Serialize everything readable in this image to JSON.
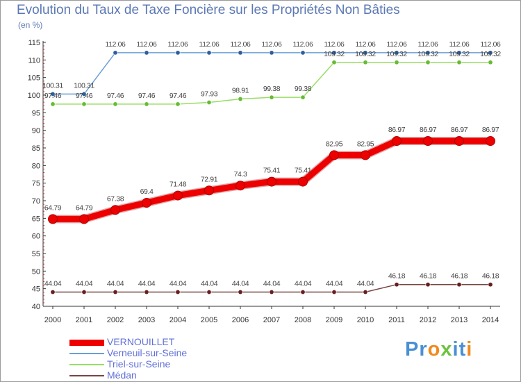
{
  "title": "Evolution du Taux de Taxe Foncière sur les Propriétés Non Bâties",
  "unit": "(en %)",
  "brand": {
    "letters": [
      "P",
      "r",
      "o",
      "x",
      "i",
      "t",
      "i"
    ],
    "colors": [
      "#4a8fd4",
      "#4a8fd4",
      "#f08a1c",
      "#6cc23f",
      "#4a8fd4",
      "#4a8fd4",
      "#f08a1c"
    ]
  },
  "chart_data": {
    "type": "line",
    "title": "Evolution du Taux de Taxe Foncière sur les Propriétés Non Bâties",
    "ylabel": "(en %)",
    "xlabel": "",
    "ylim": [
      40,
      115
    ],
    "yticks": [
      40,
      45,
      50,
      55,
      60,
      65,
      70,
      75,
      80,
      85,
      90,
      95,
      100,
      105,
      110,
      115
    ],
    "grid": false,
    "legend_position": "bottom-left",
    "x": [
      "2000",
      "2001",
      "2002",
      "2003",
      "2004",
      "2005",
      "2006",
      "2007",
      "2008",
      "2009",
      "2010",
      "2011",
      "2012",
      "2013",
      "2014"
    ],
    "series": [
      {
        "name": "VERNOUILLET",
        "color": "#ee0000",
        "style": "thick",
        "values": [
          64.79,
          64.79,
          67.38,
          69.4,
          71.48,
          72.91,
          74.3,
          75.41,
          75.41,
          82.95,
          82.95,
          86.97,
          86.97,
          86.97,
          86.97
        ],
        "labels": [
          "64.79",
          "64.79",
          "67.38",
          "69.4",
          "71.48",
          "72.91",
          "74.3",
          "75.41",
          "75.41",
          "82.95",
          "82.95",
          "86.97",
          "86.97",
          "86.97",
          "86.97"
        ]
      },
      {
        "name": "Verneuil-sur-Seine",
        "color": "#6a9fd8",
        "marker": "#2d5f9e",
        "style": "thin",
        "values": [
          100.31,
          100.31,
          112.06,
          112.06,
          112.06,
          112.06,
          112.06,
          112.06,
          112.06,
          112.06,
          112.06,
          112.06,
          112.06,
          112.06,
          112.06
        ],
        "labels": [
          "100.31",
          "100.31",
          "112.06",
          "112.06",
          "112.06",
          "112.06",
          "112.06",
          "112.06",
          "112.06",
          "112.06",
          "112.06",
          "112.06",
          "112.06",
          "112.06",
          "112.06"
        ]
      },
      {
        "name": "Triel-sur-Seine",
        "color": "#99dd66",
        "marker": "#66bb33",
        "style": "thin",
        "values": [
          97.46,
          97.46,
          97.46,
          97.46,
          97.46,
          97.93,
          98.91,
          99.38,
          99.38,
          109.32,
          109.32,
          109.32,
          109.32,
          109.32,
          109.32
        ],
        "labels": [
          "97.46",
          "97.46",
          "97.46",
          "97.46",
          "97.46",
          "97.93",
          "98.91",
          "99.38",
          "99.38",
          "109.32",
          "109.32",
          "109.32",
          "109.32",
          "109.32",
          "109.32"
        ]
      },
      {
        "name": "Médan",
        "color": "#774444",
        "marker": "#661f1f",
        "style": "thin",
        "values": [
          44.04,
          44.04,
          44.04,
          44.04,
          44.04,
          44.04,
          44.04,
          44.04,
          44.04,
          44.04,
          44.04,
          46.18,
          46.18,
          46.18,
          46.18
        ],
        "labels": [
          "44.04",
          "44.04",
          "44.04",
          "44.04",
          "44.04",
          "44.04",
          "44.04",
          "44.04",
          "44.04",
          "44.04",
          "44.04",
          "46.18",
          "46.18",
          "46.18",
          "46.18"
        ]
      }
    ]
  }
}
